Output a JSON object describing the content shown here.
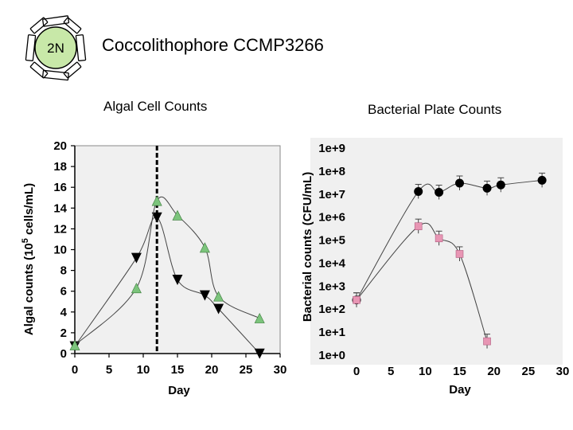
{
  "header": {
    "badge": "2N",
    "title": "Coccolithophore CCMP3266"
  },
  "colors": {
    "badge_fill": "#c8e8a8",
    "green_marker": "#7cc47c",
    "pink_marker": "#e896b4",
    "black_marker": "#000000"
  },
  "chart_data": [
    {
      "type": "line",
      "title": "Algal Cell Counts",
      "xlabel": "Day",
      "ylabel": "Algal counts (10",
      "ylabel_sup": "5",
      "ylabel_tail": " cells/mL)",
      "xlim": [
        0,
        30
      ],
      "ylim": [
        0,
        20
      ],
      "xticks": [
        0,
        5,
        10,
        15,
        20,
        25,
        30
      ],
      "yticks": [
        0,
        2,
        4,
        6,
        8,
        10,
        12,
        14,
        16,
        18,
        20
      ],
      "vline_x": 12,
      "series": [
        {
          "marker": "triangle-down",
          "color": "#000000",
          "x": [
            0,
            9,
            12,
            15,
            19,
            21,
            27
          ],
          "y": [
            0.7,
            9.2,
            13.1,
            7.1,
            5.6,
            4.3,
            0
          ]
        },
        {
          "marker": "triangle-up",
          "color": "#7cc47c",
          "x": [
            0,
            9,
            12,
            15,
            19,
            21,
            27
          ],
          "y": [
            0.8,
            6.3,
            14.7,
            13.3,
            10.2,
            5.5,
            3.4
          ]
        }
      ]
    },
    {
      "type": "line",
      "title": "Bacterial Plate Counts",
      "xlabel": "Day",
      "ylabel": "Bacterial counts (CFU/mL)",
      "xlim": [
        0,
        30
      ],
      "ylim_log10": [
        0,
        9
      ],
      "xticks": [
        0,
        5,
        10,
        15,
        20,
        25,
        30
      ],
      "yticks": [
        "1e+0",
        "1e+1",
        "1e+2",
        "1e+3",
        "1e+4",
        "1e+5",
        "1e+6",
        "1e+7",
        "1e+8",
        "1e+9"
      ],
      "series": [
        {
          "marker": "circle",
          "color": "#000000",
          "x": [
            0,
            9,
            12,
            15,
            19,
            21,
            27
          ],
          "y": [
            "2.5e2",
            "1.3e7",
            "1.2e7",
            "3.0e7",
            "1.8e7",
            "2.5e7",
            "4.0e7"
          ]
        },
        {
          "marker": "square",
          "color": "#e896b4",
          "x": [
            0,
            9,
            12,
            15,
            19
          ],
          "y": [
            "2.5e2",
            "4.0e5",
            "1.2e5",
            "2.5e4",
            "4.0e0"
          ]
        }
      ]
    }
  ]
}
